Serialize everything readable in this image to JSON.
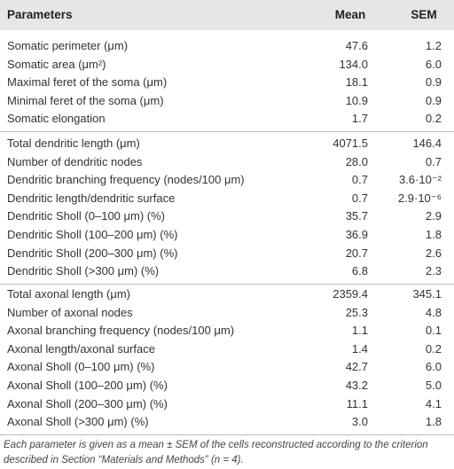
{
  "table": {
    "header": [
      "Parameters",
      "Mean",
      "SEM"
    ],
    "groups": [
      [
        [
          "Somatic perimeter (μm)",
          "47.6",
          "1.2"
        ],
        [
          "Somatic area (μm²)",
          "134.0",
          "6.0"
        ],
        [
          "Maximal feret of the soma (μm)",
          "18.1",
          "0.9"
        ],
        [
          "Minimal feret of the soma (μm)",
          "10.9",
          "0.9"
        ],
        [
          "Somatic elongation",
          "1.7",
          "0.2"
        ]
      ],
      [
        [
          "Total dendritic length (μm)",
          "4071.5",
          "146.4"
        ],
        [
          "Number of dendritic nodes",
          "28.0",
          "0.7"
        ],
        [
          "Dendritic branching frequency (nodes/100 μm)",
          "0.7",
          "3.6·10⁻²"
        ],
        [
          "Dendritic length/dendritic surface",
          "0.7",
          "2.9·10⁻⁶"
        ],
        [
          "Dendritic Sholl (0–100 μm) (%)",
          "35.7",
          "2.9"
        ],
        [
          "Dendritic Sholl (100–200 μm) (%)",
          "36.9",
          "1.8"
        ],
        [
          "Dendritic Sholl (200–300 μm) (%)",
          "20.7",
          "2.6"
        ],
        [
          "Dendritic Sholl (>300 μm) (%)",
          "6.8",
          "2.3"
        ]
      ],
      [
        [
          "Total axonal length (μm)",
          "2359.4",
          "345.1"
        ],
        [
          "Number of axonal nodes",
          "25.3",
          "4.8"
        ],
        [
          "Axonal branching frequency (nodes/100 μm)",
          "1.1",
          "0.1"
        ],
        [
          "Axonal length/axonal surface",
          "1.4",
          "0.2"
        ],
        [
          "Axonal Sholl (0–100 μm) (%)",
          "42.7",
          "6.0"
        ],
        [
          "Axonal Sholl (100–200 μm) (%)",
          "43.2",
          "5.0"
        ],
        [
          "Axonal Sholl (200–300 μm) (%)",
          "11.1",
          "4.1"
        ],
        [
          "Axonal Sholl (>300 μm) (%)",
          "3.0",
          "1.8"
        ]
      ]
    ],
    "footnote": "Each parameter is given as a mean ± SEM of the cells reconstructed according to the criterion described in Section “Materials and Methods” (n = 4)."
  }
}
